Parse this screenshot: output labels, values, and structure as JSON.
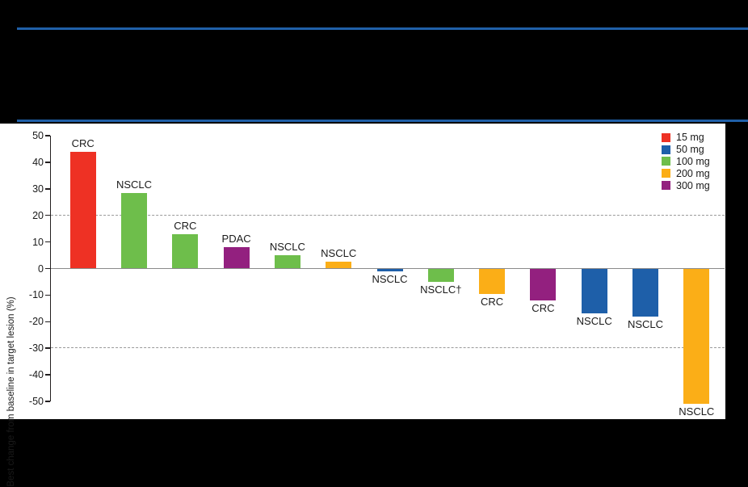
{
  "page": {
    "background": "#000000"
  },
  "header": {
    "rule_color": "#2060A8",
    "note": ""
  },
  "chart_data": {
    "type": "bar",
    "subtype": "waterfall",
    "title": "",
    "xlabel": "",
    "ylabel": "Best change from baseline in target lesion (%)",
    "ylim": [
      -52,
      50
    ],
    "y_ticks": [
      50,
      40,
      30,
      20,
      10,
      0,
      -10,
      -20,
      -30,
      -40,
      -50
    ],
    "reference_lines": [
      20,
      -30
    ],
    "grid": "dashed reference lines only",
    "legend_position": "top-right",
    "legend": [
      {
        "label": "15 mg",
        "color": "#EE3124"
      },
      {
        "label": "50 mg",
        "color": "#1E5FA9"
      },
      {
        "label": "100 mg",
        "color": "#6EBE4B"
      },
      {
        "label": "200 mg",
        "color": "#FBAE17"
      },
      {
        "label": "300 mg",
        "color": "#93207F"
      }
    ],
    "bars": [
      {
        "label": "CRC",
        "dose": "15 mg",
        "value": 44
      },
      {
        "label": "NSCLC",
        "dose": "100 mg",
        "value": 28.5
      },
      {
        "label": "CRC",
        "dose": "100 mg",
        "value": 13
      },
      {
        "label": "PDAC",
        "dose": "300 mg",
        "value": 8
      },
      {
        "label": "NSCLC",
        "dose": "100 mg",
        "value": 5
      },
      {
        "label": "NSCLC",
        "dose": "200 mg",
        "value": 2.5
      },
      {
        "label": "NSCLC",
        "dose": "50 mg",
        "value": -1
      },
      {
        "label": "NSCLC†",
        "dose": "100 mg",
        "value": -5
      },
      {
        "label": "CRC",
        "dose": "200 mg",
        "value": -9.5
      },
      {
        "label": "CRC",
        "dose": "300 mg",
        "value": -12
      },
      {
        "label": "NSCLC",
        "dose": "50 mg",
        "value": -17
      },
      {
        "label": "NSCLC",
        "dose": "50 mg",
        "value": -18
      },
      {
        "label": "NSCLC",
        "dose": "200 mg",
        "value": -51
      }
    ]
  }
}
